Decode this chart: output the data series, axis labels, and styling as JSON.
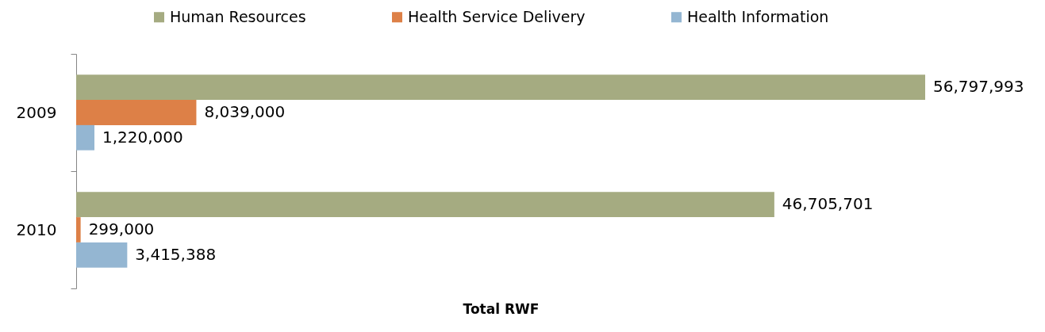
{
  "chart_data": {
    "type": "bar",
    "orientation": "horizontal",
    "xlabel": "Total RWF",
    "categories": [
      "2009",
      "2010"
    ],
    "series": [
      {
        "name": "Human Resources",
        "color": "#a5ab81",
        "values": [
          56797993,
          46705701
        ],
        "value_labels": [
          "56,797,993",
          "46,705,701"
        ]
      },
      {
        "name": "Health Service Delivery",
        "color": "#dd8047",
        "values": [
          8039000,
          299000
        ],
        "value_labels": [
          "8,039,000",
          "299,000"
        ]
      },
      {
        "name": "Health Information",
        "color": "#94b6d2",
        "values": [
          1220000,
          3415388
        ],
        "value_labels": [
          "1,220,000",
          "3,415,388"
        ]
      }
    ],
    "legend": "top",
    "tick_labels": "y"
  }
}
